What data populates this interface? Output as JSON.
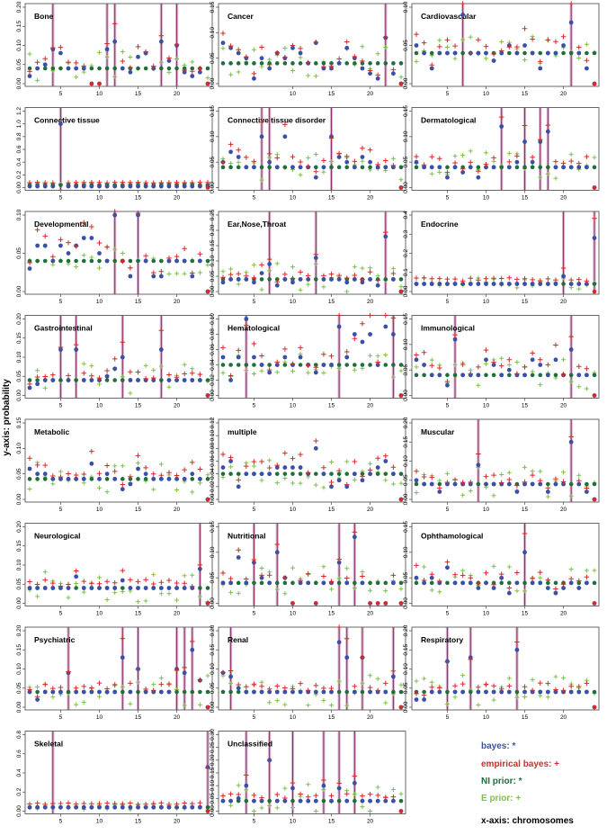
{
  "figure": {
    "ylabel": "y-axis: probability",
    "xlabel_legend": "x-axis: chromosomes"
  },
  "legend": [
    {
      "label": "bayes: *",
      "color": "#3a4fa8"
    },
    {
      "label": "empirical bayes: +",
      "color": "#d42a2a"
    },
    {
      "label": "NI prior: *",
      "color": "#1f6e3b"
    },
    {
      "label": "E prior: +",
      "color": "#7cc04a"
    }
  ],
  "colors": {
    "bayes": "#3a4fa8",
    "empirical_bayes": "#d42a2a",
    "ni_prior": "#1f6e3b",
    "e_prior": "#7cc04a",
    "vline": "#8b2d6a"
  },
  "chart_data": [
    {
      "type": "scatter",
      "title": "Bone",
      "ylim": [
        0,
        0.2
      ],
      "yticks": [
        0,
        0.05,
        0.1,
        0.15,
        0.2
      ],
      "xticks": [
        5,
        10,
        15,
        20
      ],
      "highlight": [
        4,
        11,
        12,
        18,
        20
      ],
      "bayes": [
        0.02,
        0.04,
        0.05,
        0.09,
        0.08,
        0.04,
        0.04,
        0.04,
        0.0,
        0.0,
        0.09,
        0.11,
        0.04,
        0.03,
        0.07,
        0.08,
        0.04,
        0.11,
        0.06,
        0.1,
        0.03,
        0.02,
        0.03,
        0.0
      ]
    },
    {
      "type": "scatter",
      "title": "Cancer",
      "ylim": [
        0,
        0.15
      ],
      "yticks": [
        0,
        0.05,
        0.1,
        0.15
      ],
      "xticks": [
        10,
        15,
        20
      ],
      "highlight": [
        22
      ],
      "bayes": [
        0.08,
        0.07,
        0.06,
        0.05,
        0.01,
        0.05,
        0.03,
        0.06,
        0.05,
        0.07,
        0.06,
        0.04,
        0.08,
        0.03,
        0.03,
        0.04,
        0.07,
        0.05,
        0.03,
        0.02,
        0.01,
        0.09,
        0.02,
        0.0
      ]
    },
    {
      "type": "scatter",
      "title": "Cardiovascular",
      "ylim": [
        0,
        0.1
      ],
      "yticks": [
        0,
        0.05,
        0.1
      ],
      "xticks": [
        5,
        10,
        15,
        20
      ],
      "highlight": [
        7,
        21
      ],
      "bayes": [
        0.05,
        0.04,
        0.02,
        0.04,
        0.04,
        0.04,
        0.09,
        0.04,
        0.04,
        0.04,
        0.03,
        0.04,
        0.05,
        0.04,
        0.05,
        0.04,
        0.02,
        0.04,
        0.04,
        0.05,
        0.08,
        0.04,
        0.02,
        0.0
      ]
    },
    {
      "type": "scatter",
      "title": "Connective tissue",
      "ylim": [
        0,
        1.2
      ],
      "yticks": [
        0,
        0.2,
        0.4,
        0.6,
        0.8,
        1.0,
        1.2
      ],
      "xticks": [
        5,
        10,
        15,
        20
      ],
      "highlight": [
        5
      ],
      "bayes": [
        0.02,
        0.02,
        0.02,
        0.02,
        1.0,
        0.02,
        0.02,
        0.02,
        0.02,
        0.02,
        0.02,
        0.02,
        0.02,
        0.02,
        0.02,
        0.02,
        0.02,
        0.02,
        0.02,
        0.02,
        0.02,
        0.02,
        0.02,
        0.02
      ]
    },
    {
      "type": "scatter",
      "title": "Connective tissue disorder",
      "ylim": [
        0,
        0.15
      ],
      "yticks": [
        0,
        0.05,
        0.1,
        0.15
      ],
      "xticks": [
        5,
        10,
        15,
        20
      ],
      "highlight": [
        6,
        7,
        15
      ],
      "bayes": [
        0.05,
        0.07,
        0.06,
        0.04,
        0.04,
        0.1,
        0.05,
        0.04,
        0.1,
        0.04,
        0.04,
        0.04,
        0.02,
        0.04,
        0.1,
        0.06,
        0.05,
        0.04,
        0.06,
        0.05,
        0.04,
        0.04,
        0.04,
        0.0
      ]
    },
    {
      "type": "scatter",
      "title": "Dermatological",
      "ylim": [
        0,
        0.15
      ],
      "yticks": [
        0,
        0.05,
        0.1,
        0.15
      ],
      "xticks": [
        5,
        10,
        15,
        20
      ],
      "highlight": [
        12,
        15,
        17,
        18
      ],
      "bayes": [
        0.05,
        0.04,
        0.04,
        0.04,
        0.02,
        0.04,
        0.03,
        0.04,
        0.02,
        0.04,
        0.04,
        0.12,
        0.04,
        0.05,
        0.09,
        0.05,
        0.09,
        0.11,
        0.04,
        0.04,
        0.04,
        0.04,
        0.04,
        0.0
      ]
    },
    {
      "type": "scatter",
      "title": "Developmental",
      "ylim": [
        0,
        0.1
      ],
      "yticks": [
        0,
        0.05,
        0.1
      ],
      "xticks": [
        5,
        10,
        15,
        20
      ],
      "highlight": [
        12,
        15
      ],
      "bayes": [
        0.03,
        0.06,
        0.06,
        0.04,
        0.06,
        0.05,
        0.06,
        0.07,
        0.07,
        0.05,
        0.04,
        0.11,
        0.04,
        0.02,
        0.1,
        0.04,
        0.02,
        0.02,
        0.04,
        0.04,
        0.04,
        0.02,
        0.04,
        0.0
      ]
    },
    {
      "type": "scatter",
      "title": "Ear,Nose,Throat",
      "ylim": [
        0,
        0.25
      ],
      "yticks": [
        0,
        0.05,
        0.1,
        0.15,
        0.2,
        0.25
      ],
      "xticks": [
        5,
        10,
        15,
        20
      ],
      "highlight": [
        7,
        13,
        22
      ],
      "bayes": [
        0.03,
        0.04,
        0.04,
        0.04,
        0.03,
        0.06,
        0.09,
        0.02,
        0.04,
        0.03,
        0.04,
        0.04,
        0.11,
        0.04,
        0.04,
        0.04,
        0.03,
        0.04,
        0.03,
        0.04,
        0.02,
        0.18,
        0.04,
        0.0
      ]
    },
    {
      "type": "scatter",
      "title": "Endocrine",
      "ylim": [
        0,
        0.4
      ],
      "yticks": [
        0,
        0.1,
        0.2,
        0.3,
        0.4
      ],
      "xticks": [
        5,
        10,
        15,
        20
      ],
      "highlight": [
        20,
        24
      ],
      "bayes": [
        0.04,
        0.04,
        0.04,
        0.04,
        0.04,
        0.04,
        0.04,
        0.04,
        0.04,
        0.04,
        0.04,
        0.04,
        0.04,
        0.04,
        0.04,
        0.04,
        0.04,
        0.04,
        0.04,
        0.08,
        0.04,
        0.04,
        0.04,
        0.28
      ]
    },
    {
      "type": "scatter",
      "title": "Gastrointestinal",
      "ylim": [
        0,
        0.2
      ],
      "yticks": [
        0,
        0.05,
        0.1,
        0.15,
        0.2
      ],
      "xticks": [
        5,
        10,
        15,
        20
      ],
      "highlight": [
        5,
        7,
        13,
        18
      ],
      "bayes": [
        0.02,
        0.03,
        0.04,
        0.04,
        0.12,
        0.04,
        0.12,
        0.04,
        0.04,
        0.04,
        0.05,
        0.07,
        0.1,
        0.04,
        0.04,
        0.04,
        0.04,
        0.12,
        0.04,
        0.04,
        0.04,
        0.04,
        0.04,
        0.0
      ]
    },
    {
      "type": "scatter",
      "title": "Hematological",
      "ylim": [
        0,
        0.1
      ],
      "yticks": [
        0,
        0.02,
        0.04,
        0.06,
        0.08,
        0.1
      ],
      "xticks": [
        5,
        10,
        15,
        20
      ],
      "highlight": [
        4,
        16,
        23
      ],
      "bayes": [
        0.05,
        0.02,
        0.05,
        0.1,
        0.05,
        0.04,
        0.03,
        0.04,
        0.05,
        0.04,
        0.05,
        0.04,
        0.03,
        0.04,
        0.04,
        0.09,
        0.05,
        0.08,
        0.07,
        0.08,
        0.04,
        0.09,
        0.08,
        0.0
      ]
    },
    {
      "type": "scatter",
      "title": "Immunological",
      "ylim": [
        0,
        0.15
      ],
      "yticks": [
        0,
        0.05,
        0.1,
        0.15
      ],
      "xticks": [
        5,
        10,
        15,
        20
      ],
      "highlight": [
        6,
        21
      ],
      "bayes": [
        0.07,
        0.06,
        0.04,
        0.04,
        0.02,
        0.11,
        0.04,
        0.04,
        0.04,
        0.07,
        0.06,
        0.04,
        0.05,
        0.04,
        0.04,
        0.07,
        0.06,
        0.04,
        0.07,
        0.04,
        0.09,
        0.04,
        0.04,
        0.0
      ]
    },
    {
      "type": "scatter",
      "title": "Metabolic",
      "ylim": [
        0,
        0.15
      ],
      "yticks": [
        0,
        0.05,
        0.1,
        0.15
      ],
      "xticks": [
        5,
        10,
        15,
        20
      ],
      "highlight": [],
      "bayes": [
        0.06,
        0.05,
        0.05,
        0.04,
        0.04,
        0.04,
        0.04,
        0.04,
        0.07,
        0.04,
        0.05,
        0.04,
        0.02,
        0.03,
        0.06,
        0.05,
        0.04,
        0.04,
        0.04,
        0.04,
        0.04,
        0.05,
        0.04,
        0.0
      ]
    },
    {
      "type": "scatter",
      "title": "multiple",
      "ylim": [
        0,
        0.12
      ],
      "yticks": [
        0,
        0.02,
        0.04,
        0.06,
        0.08,
        0.1,
        0.12
      ],
      "xticks": [
        5,
        10,
        15,
        20
      ],
      "highlight": [],
      "bayes": [
        0.05,
        0.06,
        0.02,
        0.04,
        0.04,
        0.04,
        0.04,
        0.05,
        0.05,
        0.05,
        0.05,
        0.04,
        0.08,
        0.04,
        0.02,
        0.03,
        0.02,
        0.04,
        0.03,
        0.04,
        0.05,
        0.06,
        0.04,
        0.0
      ]
    },
    {
      "type": "scatter",
      "title": "Muscular",
      "ylim": [
        0,
        0.2
      ],
      "yticks": [
        0,
        0.05,
        0.1,
        0.15,
        0.2
      ],
      "xticks": [
        5,
        10,
        15,
        20
      ],
      "highlight": [
        9,
        21
      ],
      "bayes": [
        0.05,
        0.04,
        0.04,
        0.02,
        0.04,
        0.04,
        0.04,
        0.04,
        0.09,
        0.04,
        0.04,
        0.04,
        0.04,
        0.02,
        0.04,
        0.04,
        0.04,
        0.02,
        0.04,
        0.04,
        0.15,
        0.04,
        0.02,
        0.0
      ]
    },
    {
      "type": "scatter",
      "title": "Neurological",
      "ylim": [
        0,
        0.2
      ],
      "yticks": [
        0,
        0.05,
        0.1,
        0.15,
        0.2
      ],
      "xticks": [
        5,
        10,
        15,
        20
      ],
      "highlight": [
        23
      ],
      "bayes": [
        0.04,
        0.04,
        0.04,
        0.04,
        0.04,
        0.04,
        0.07,
        0.04,
        0.04,
        0.04,
        0.04,
        0.04,
        0.06,
        0.04,
        0.04,
        0.04,
        0.04,
        0.04,
        0.04,
        0.04,
        0.04,
        0.04,
        0.09,
        0.0
      ]
    },
    {
      "type": "scatter",
      "title": "Nutritional",
      "ylim": [
        0,
        0.15
      ],
      "yticks": [
        0,
        0.05,
        0.1,
        0.15
      ],
      "xticks": [
        5,
        10,
        15,
        20
      ],
      "highlight": [
        5,
        8,
        16,
        18
      ],
      "bayes": [
        0.04,
        0.04,
        0.09,
        0.04,
        0.08,
        0.05,
        0.04,
        0.1,
        0.05,
        0.0,
        0.04,
        0.04,
        0.0,
        0.04,
        0.04,
        0.08,
        0.04,
        0.13,
        0.04,
        0.0,
        0.0,
        0.0,
        0.04,
        0.0
      ]
    },
    {
      "type": "scatter",
      "title": "Ophthamological",
      "ylim": [
        0,
        0.15
      ],
      "yticks": [
        0,
        0.05,
        0.1,
        0.15
      ],
      "xticks": [
        5,
        10,
        15,
        20
      ],
      "highlight": [
        15
      ],
      "bayes": [
        0.05,
        0.04,
        0.05,
        0.04,
        0.07,
        0.04,
        0.04,
        0.04,
        0.03,
        0.04,
        0.03,
        0.05,
        0.02,
        0.04,
        0.1,
        0.04,
        0.04,
        0.03,
        0.02,
        0.03,
        0.04,
        0.03,
        0.04,
        0.0
      ]
    },
    {
      "type": "scatter",
      "title": "Psychiatric",
      "ylim": [
        0,
        0.2
      ],
      "yticks": [
        0,
        0.05,
        0.1,
        0.15,
        0.2
      ],
      "xticks": [
        5,
        10,
        15,
        20
      ],
      "highlight": [
        6,
        13,
        15,
        20,
        21,
        22
      ],
      "bayes": [
        0.04,
        0.02,
        0.04,
        0.04,
        0.04,
        0.09,
        0.04,
        0.04,
        0.04,
        0.04,
        0.04,
        0.04,
        0.13,
        0.04,
        0.1,
        0.04,
        0.04,
        0.04,
        0.04,
        0.1,
        0.09,
        0.15,
        0.07,
        0.0
      ]
    },
    {
      "type": "scatter",
      "title": "Renal",
      "ylim": [
        0,
        0.2
      ],
      "yticks": [
        0,
        0.05,
        0.1,
        0.15,
        0.2
      ],
      "xticks": [
        5,
        10,
        15,
        20
      ],
      "highlight": [
        2,
        16,
        17,
        19,
        23
      ],
      "bayes": [
        0.09,
        0.08,
        0.05,
        0.04,
        0.04,
        0.04,
        0.04,
        0.04,
        0.04,
        0.04,
        0.04,
        0.04,
        0.04,
        0.04,
        0.04,
        0.17,
        0.13,
        0.04,
        0.13,
        0.04,
        0.04,
        0.04,
        0.08,
        0.0
      ]
    },
    {
      "type": "scatter",
      "title": "Respiratory",
      "ylim": [
        0,
        0.2
      ],
      "yticks": [
        0,
        0.05,
        0.1,
        0.15,
        0.2
      ],
      "xticks": [
        5,
        10,
        15,
        20
      ],
      "highlight": [
        5,
        8,
        14
      ],
      "bayes": [
        0.02,
        0.02,
        0.04,
        0.04,
        0.12,
        0.04,
        0.04,
        0.13,
        0.04,
        0.04,
        0.04,
        0.04,
        0.04,
        0.15,
        0.04,
        0.04,
        0.04,
        0.04,
        0.04,
        0.04,
        0.04,
        0.04,
        0.04,
        0.0
      ]
    },
    {
      "type": "scatter",
      "title": "Skeletal",
      "ylim": [
        0,
        0.8
      ],
      "yticks": [
        0,
        0.2,
        0.4,
        0.6,
        0.8
      ],
      "xticks": [
        5,
        10,
        15,
        20
      ],
      "highlight": [
        4,
        24
      ],
      "bayes": [
        0.04,
        0.04,
        0.04,
        0.04,
        0.04,
        0.04,
        0.04,
        0.04,
        0.04,
        0.04,
        0.04,
        0.04,
        0.04,
        0.04,
        0.04,
        0.04,
        0.04,
        0.04,
        0.04,
        0.04,
        0.04,
        0.04,
        0.04,
        0.46
      ]
    },
    {
      "type": "scatter",
      "title": "Unclassified",
      "ylim": [
        0,
        0.3
      ],
      "yticks": [
        0,
        0.05,
        0.1,
        0.15,
        0.2,
        0.25,
        0.3
      ],
      "xticks": [
        5,
        10,
        15,
        20
      ],
      "highlight": [
        4,
        7,
        10,
        14,
        16,
        18
      ],
      "bayes": [
        0.04,
        0.04,
        0.05,
        0.1,
        0.04,
        0.04,
        0.2,
        0.04,
        0.04,
        0.09,
        0.04,
        0.04,
        0.04,
        0.1,
        0.04,
        0.09,
        0.04,
        0.11,
        0.04,
        0.04,
        0.04,
        0.04,
        0.04,
        0.0
      ]
    }
  ]
}
